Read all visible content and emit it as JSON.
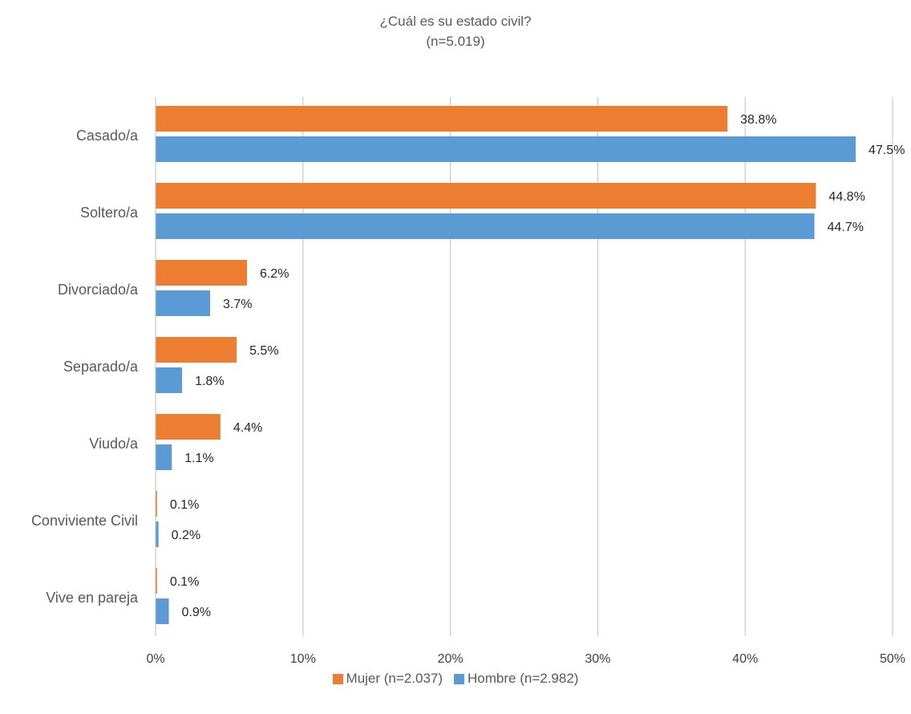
{
  "chart_data": {
    "type": "bar",
    "orientation": "horizontal",
    "title": "¿Cuál es su estado civil?",
    "subtitle": "(n=5.019)",
    "categories": [
      "Casado/a",
      "Soltero/a",
      "Divorciado/a",
      "Separado/a",
      "Viudo/a",
      "Conviviente Civil",
      "Vive en pareja"
    ],
    "series": [
      {
        "name": "Mujer (n=2.037)",
        "color": "#ED7D31",
        "values": [
          38.8,
          44.8,
          6.2,
          5.5,
          4.4,
          0.1,
          0.1
        ],
        "labels": [
          "38.8%",
          "44.8%",
          "6.2%",
          "5.5%",
          "4.4%",
          "0.1%",
          "0.1%"
        ]
      },
      {
        "name": "Hombre (n=2.982)",
        "color": "#5B9BD5",
        "values": [
          47.5,
          44.7,
          3.7,
          1.8,
          1.1,
          0.2,
          0.9
        ],
        "labels": [
          "47.5%",
          "44.7%",
          "3.7%",
          "1.8%",
          "1.1%",
          "0.2%",
          "0.9%"
        ]
      }
    ],
    "xlim": [
      0,
      50
    ],
    "xticks": [
      0,
      10,
      20,
      30,
      40,
      50
    ],
    "xtick_labels": [
      "0%",
      "10%",
      "20%",
      "30%",
      "40%",
      "50%"
    ],
    "grid": true,
    "legend_position": "bottom"
  }
}
